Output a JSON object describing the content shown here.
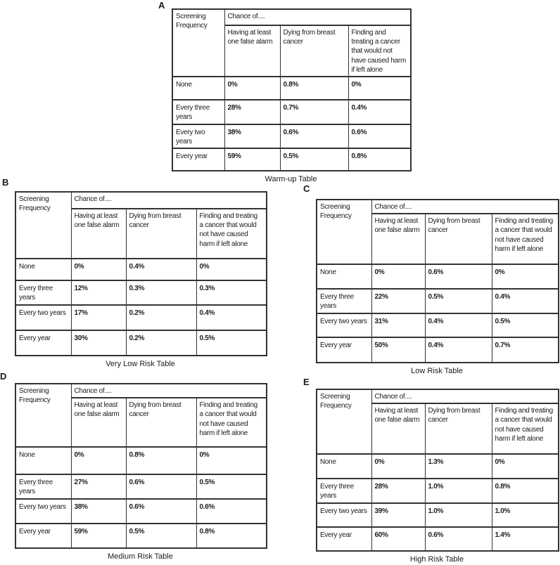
{
  "shared": {
    "corner_header": "Screening Frequency",
    "chance_header": "Chance of....",
    "sub_headers": [
      "Having at least one false alarm",
      "Dying from breast cancer",
      "Finding and treating a cancer that would not have caused harm if left alone"
    ],
    "row_labels": [
      "None",
      "Every three years",
      "Every two years",
      "Every year"
    ]
  },
  "tables": [
    {
      "panel": "A",
      "caption": "Warm-up Table",
      "rows": [
        [
          "0%",
          "0.8%",
          "0%"
        ],
        [
          "28%",
          "0.7%",
          "0.4%"
        ],
        [
          "38%",
          "0.6%",
          "0.6%"
        ],
        [
          "59%",
          "0.5%",
          "0.8%"
        ]
      ]
    },
    {
      "panel": "B",
      "caption": "Very Low Risk Table",
      "rows": [
        [
          "0%",
          "0.4%",
          "0%"
        ],
        [
          "12%",
          "0.3%",
          "0.3%"
        ],
        [
          "17%",
          "0.2%",
          "0.4%"
        ],
        [
          "30%",
          "0.2%",
          "0.5%"
        ]
      ]
    },
    {
      "panel": "C",
      "caption": "Low Risk Table",
      "rows": [
        [
          "0%",
          "0.6%",
          "0%"
        ],
        [
          "22%",
          "0.5%",
          "0.4%"
        ],
        [
          "31%",
          "0.4%",
          "0.5%"
        ],
        [
          "50%",
          "0.4%",
          "0.7%"
        ]
      ]
    },
    {
      "panel": "D",
      "caption": "Medium Risk Table",
      "rows": [
        [
          "0%",
          "0.8%",
          "0%"
        ],
        [
          "27%",
          "0.6%",
          "0.5%"
        ],
        [
          "38%",
          "0.6%",
          "0.6%"
        ],
        [
          "59%",
          "0.5%",
          "0.8%"
        ]
      ]
    },
    {
      "panel": "E",
      "caption": "High Risk Table",
      "rows": [
        [
          "0%",
          "1.3%",
          "0%"
        ],
        [
          "28%",
          "1.0%",
          "0.8%"
        ],
        [
          "39%",
          "1.0%",
          "1.0%"
        ],
        [
          "60%",
          "0.6%",
          "1.4%"
        ]
      ]
    }
  ],
  "colors": {
    "background": "#ffffff",
    "border": "#333333",
    "text": "#1c1c1c"
  }
}
